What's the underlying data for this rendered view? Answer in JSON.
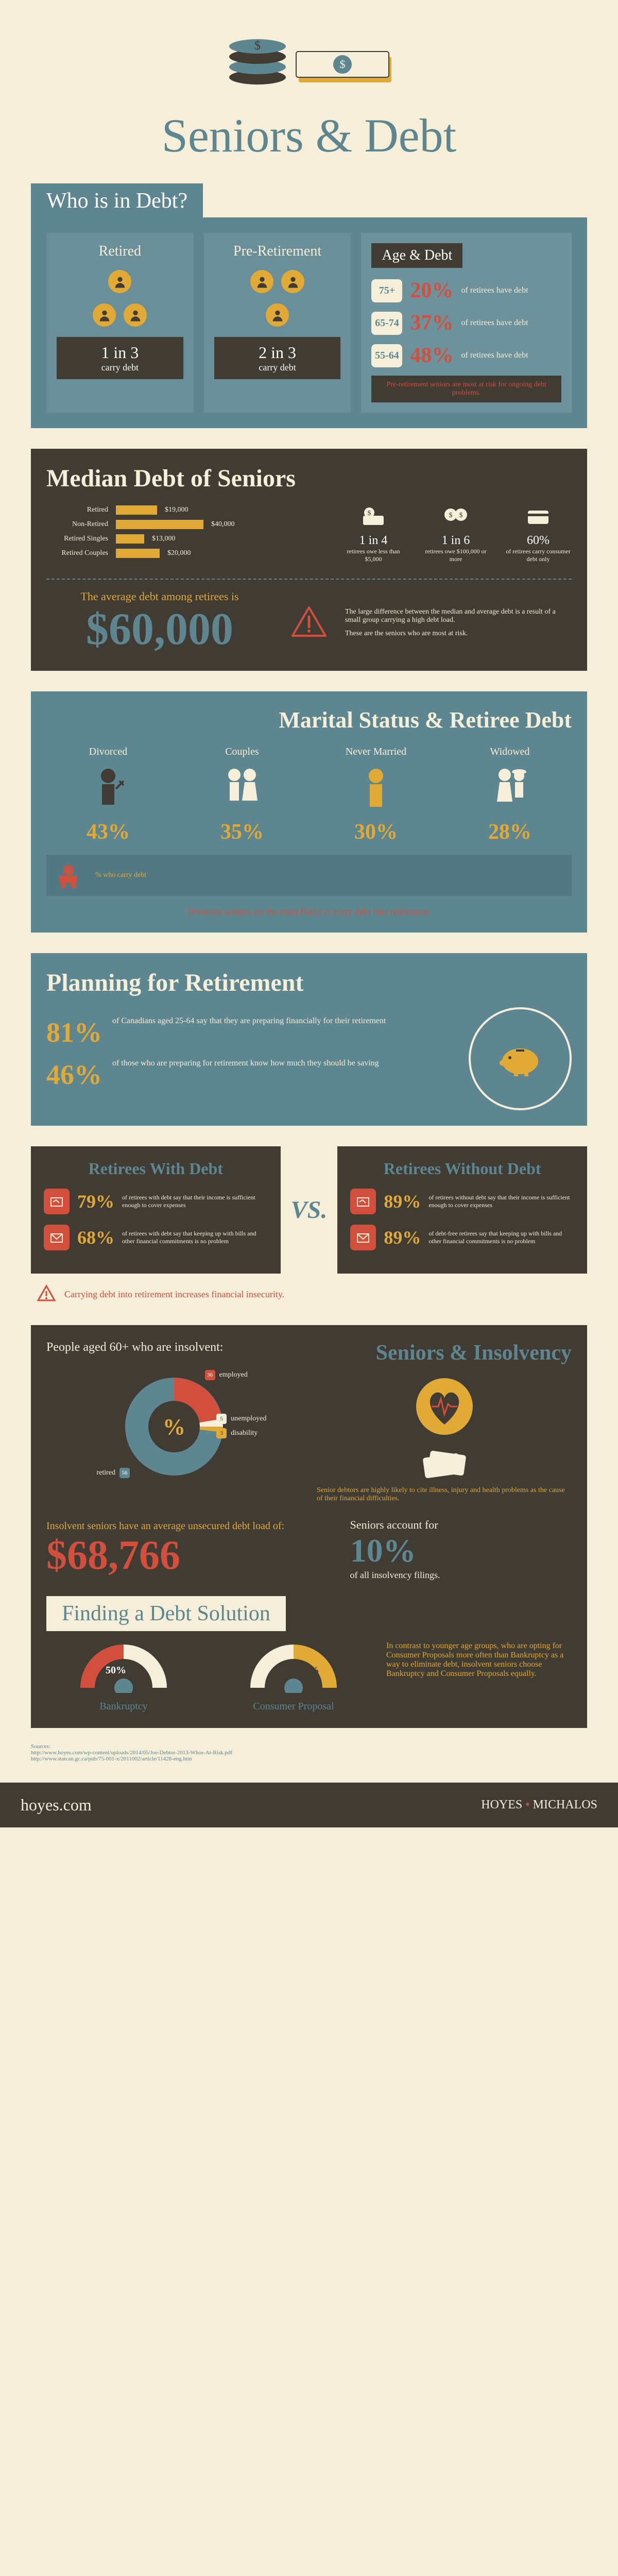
{
  "title": "Seniors & Debt",
  "whoInDebt": {
    "header": "Who is in Debt?",
    "retired": {
      "label": "Retired",
      "stat": "1 in 3",
      "caption": "carry debt"
    },
    "preRetirement": {
      "label": "Pre-Retirement",
      "stat": "2 in 3",
      "caption": "carry debt"
    },
    "ageDebt": {
      "title": "Age & Debt",
      "rows": [
        {
          "age": "75+",
          "pct": "20%",
          "text": "of retirees have debt"
        },
        {
          "age": "65-74",
          "pct": "37%",
          "text": "of retirees have debt"
        },
        {
          "age": "55-64",
          "pct": "48%",
          "text": "of retirees have debt"
        }
      ],
      "note": "Pre-retirement seniors are most at risk for ongoing debt problems."
    }
  },
  "medianDebt": {
    "title": "Median Debt of Seniors",
    "bars": [
      {
        "label": "Retired",
        "value": "$19,000",
        "width": 80
      },
      {
        "label": "Non-Retired",
        "value": "$40,000",
        "width": 170
      },
      {
        "label": "Retired Singles",
        "value": "$13,000",
        "width": 55
      },
      {
        "label": "Retired Couples",
        "value": "$20,000",
        "width": 85
      }
    ],
    "facts": [
      {
        "big": "1 in 4",
        "small": "retirees owe less than $5,000"
      },
      {
        "big": "1 in 6",
        "small": "retirees owe $100,000 or more"
      },
      {
        "big": "60%",
        "small": "of retirees carry consumer debt only"
      }
    ],
    "avgLabel": "The average debt among retirees is",
    "avgNum": "$60,000",
    "avgNote1": "The large difference between the median and average debt is a result of a small group carrying a high debt load.",
    "avgNote2": "These are the seniors who are most at risk."
  },
  "marital": {
    "title": "Marital Status & Retiree Debt",
    "items": [
      {
        "label": "Divorced",
        "pct": "43%"
      },
      {
        "label": "Couples",
        "pct": "35%"
      },
      {
        "label": "Never Married",
        "pct": "30%"
      },
      {
        "label": "Widowed",
        "pct": "28%"
      }
    ],
    "caption": "% who carry debt",
    "note": "Divorced seniors are the most likely to carry debt into retirement."
  },
  "planning": {
    "title": "Planning for Retirement",
    "stats": [
      {
        "pct": "81%",
        "text": "of Canadians aged 25-64 say that they are preparing financially for their retirement"
      },
      {
        "pct": "46%",
        "text": "of those who are preparing for retirement know how much they should be saving"
      }
    ]
  },
  "vs": {
    "leftTitle": "Retirees With Debt",
    "rightTitle": "Retirees Without Debt",
    "center": "VS.",
    "leftStats": [
      {
        "pct": "79%",
        "text": "of retirees with debt say that their income is sufficient enough to cover expenses"
      },
      {
        "pct": "68%",
        "text": "of retirees with debt say that keeping up with bills and other financial commitments is no problem"
      }
    ],
    "rightStats": [
      {
        "pct": "89%",
        "text": "of retirees without debt say that their income is sufficient enough to cover expenses"
      },
      {
        "pct": "89%",
        "text": "of debt-free retirees say that keeping up with bills and other financial commitments is no problem"
      }
    ],
    "note": "Carrying debt into retirement increases financial insecurity."
  },
  "insolvency": {
    "leftSub": "People aged 60+ who are insolvent:",
    "rightTitle": "Seniors & Insolvency",
    "pie": {
      "segments": [
        {
          "label": "employed",
          "value": 36,
          "color": "#d24f3e"
        },
        {
          "label": "unemployed",
          "value": 5,
          "color": "#f5eed8"
        },
        {
          "label": "disability",
          "value": 3,
          "color": "#e1a936"
        },
        {
          "label": "retired",
          "value": 56,
          "color": "#5e8690"
        }
      ]
    },
    "rightNote": "Senior debtors are highly likely to cite illness, injury and health problems as the cause of their financial difficulties.",
    "avgLabel": "Insolvent seniors have an average unsecured debt load of:",
    "avgNum": "$68,766",
    "acctLabel": "Seniors account for",
    "acctPct": "10%",
    "acctText": "of all insolvency filings.",
    "solutionHeader": "Finding a Debt Solution",
    "gauges": [
      {
        "pct": "50%",
        "label": "Bankruptcy"
      },
      {
        "pct": "50%",
        "label": "Consumer Proposal"
      }
    ],
    "solutionText": "In contrast to younger age groups, who are opting for Consumer Proposals more often than Bankruptcy as a way to eliminate debt, insolvent seniors choose Bankruptcy and Consumer Proposals equally."
  },
  "sources": {
    "label": "Sources:",
    "urls": [
      "http://www.hoyes.com/wp-content/uploads/2014/05/Joe-Debtor-2013-Whos-At-Risk.pdf",
      "http://www.statcan.gc.ca/pub/75-001-x/2011002/article/11428-eng.htm"
    ]
  },
  "footer": {
    "url": "hoyes.com",
    "brand1": "HOYES",
    "brand2": "MICHALOS"
  },
  "colors": {
    "teal": "#5e8690",
    "beige": "#f5eed8",
    "gold": "#e1a936",
    "red": "#d24f3e",
    "dark": "#403b33"
  }
}
